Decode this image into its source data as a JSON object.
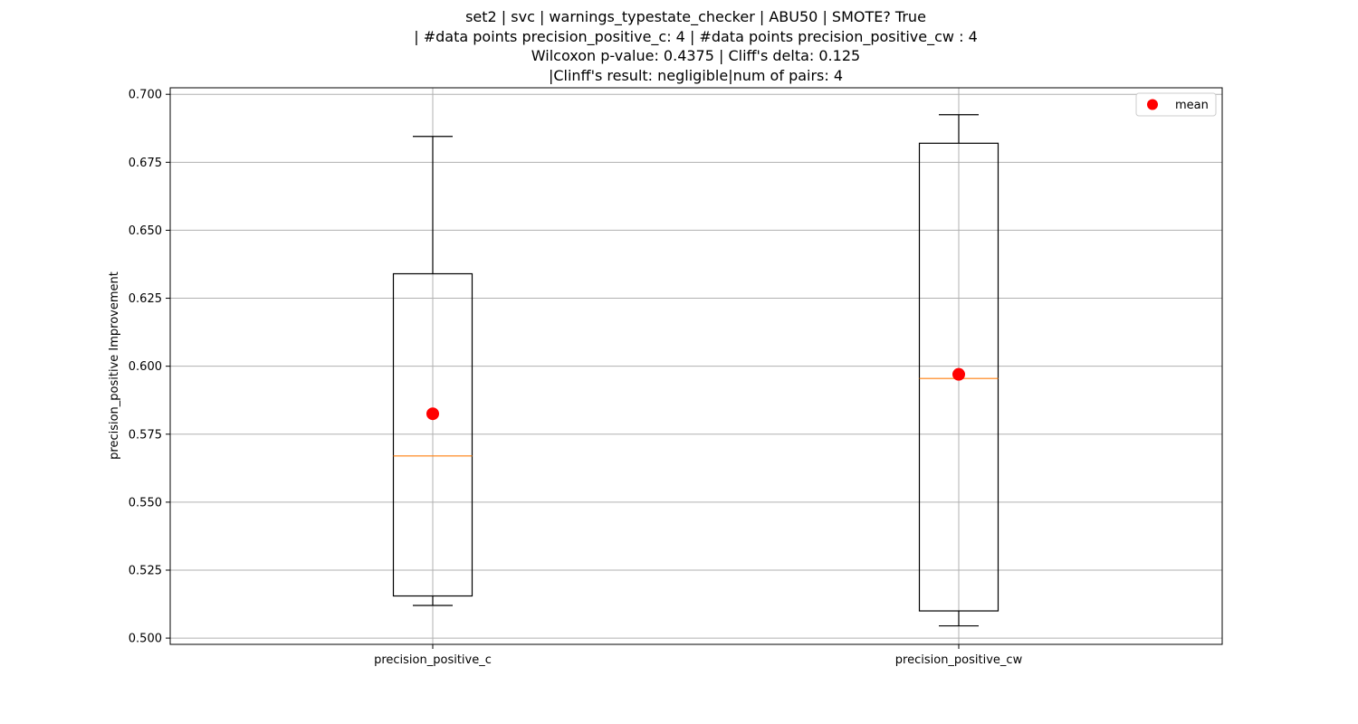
{
  "chart_data": {
    "type": "box",
    "title_lines": [
      "set2 | svc | warnings_typestate_checker | ABU50 | SMOTE? True",
      "| #data points precision_positive_c: 4 | #data points precision_positive_cw : 4",
      "Wilcoxon p-value: 0.4375 | Cliff's delta: 0.125",
      "|Clinff's result: negligible|num of pairs: 4"
    ],
    "ylabel": "precision_positive Improvement",
    "ylim": [
      0.4977,
      0.7024
    ],
    "yticks": [
      0.5,
      0.525,
      0.55,
      0.575,
      0.6,
      0.625,
      0.65,
      0.675,
      0.7
    ],
    "ytick_labels": [
      "0.500",
      "0.525",
      "0.550",
      "0.575",
      "0.600",
      "0.625",
      "0.650",
      "0.675",
      "0.700"
    ],
    "grid": true,
    "legend": {
      "position": "top-right",
      "entries": [
        {
          "label": "mean",
          "color": "#ff0000"
        }
      ]
    },
    "colors": {
      "box": "#000000",
      "median": "#ff7f0e",
      "mean": "#ff0000",
      "grid": "#b0b0b0"
    },
    "categories": [
      "precision_positive_c",
      "precision_positive_cw"
    ],
    "boxes": [
      {
        "name": "precision_positive_c",
        "whisker_low": 0.512,
        "q1": 0.5155,
        "median": 0.567,
        "q3": 0.634,
        "whisker_high": 0.6845,
        "mean": 0.5825
      },
      {
        "name": "precision_positive_cw",
        "whisker_low": 0.5045,
        "q1": 0.51,
        "median": 0.5955,
        "q3": 0.682,
        "whisker_high": 0.6925,
        "mean": 0.597
      }
    ]
  }
}
